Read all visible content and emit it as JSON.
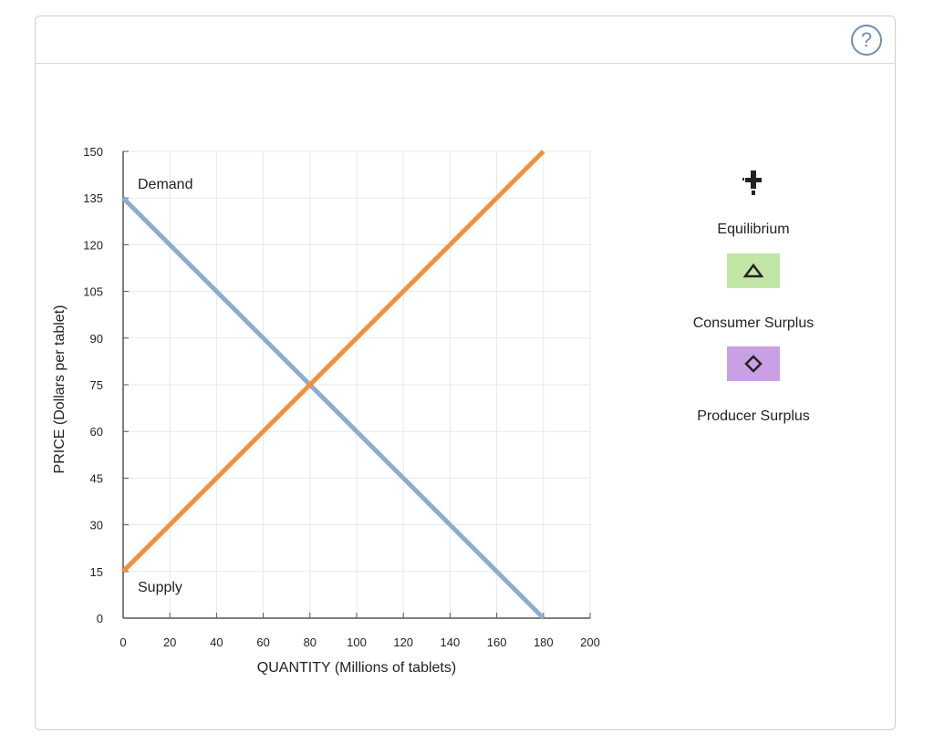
{
  "help": {
    "label": "?"
  },
  "chart_data": {
    "type": "line",
    "xlabel": "QUANTITY (Millions of tablets)",
    "ylabel": "PRICE (Dollars per tablet)",
    "xlim": [
      0,
      200
    ],
    "ylim": [
      0,
      150
    ],
    "x_ticks": [
      "0",
      "20",
      "40",
      "60",
      "80",
      "100",
      "120",
      "140",
      "160",
      "180",
      "200"
    ],
    "y_ticks": [
      "0",
      "15",
      "30",
      "45",
      "60",
      "75",
      "90",
      "105",
      "120",
      "135",
      "150"
    ],
    "grid": true,
    "series": [
      {
        "name": "Demand",
        "color": "#8badd0",
        "points": [
          [
            0,
            135
          ],
          [
            180,
            0
          ]
        ]
      },
      {
        "name": "Supply",
        "color": "#f0923a",
        "points": [
          [
            0,
            15
          ],
          [
            180,
            150
          ]
        ]
      }
    ]
  },
  "palette": {
    "equilibrium": {
      "label": "Equilibrium",
      "icon": "plus-marker-icon"
    },
    "consumer_surplus": {
      "label": "Consumer Surplus",
      "icon": "triangle-icon",
      "color": "#c2e6a6"
    },
    "producer_surplus": {
      "label": "Producer Surplus",
      "icon": "diamond-icon",
      "color": "#c9a0e4"
    }
  }
}
